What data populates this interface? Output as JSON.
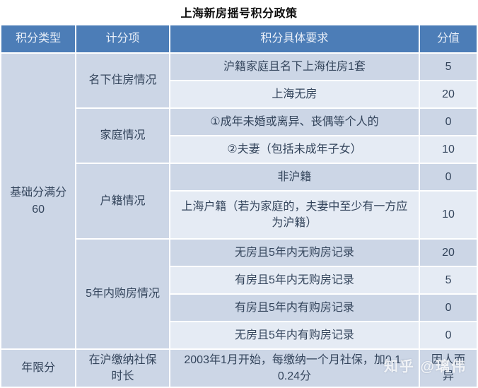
{
  "title": "上海新房摇号积分政策",
  "watermark": "知乎 @璃伟",
  "colors": {
    "header_bg": "#4c7db7",
    "header_text": "#e9eff8",
    "row_mid": "#ccd6e6",
    "row_light": "#e5ebf4",
    "body_text": "#34455c",
    "page_bg": "#ffffff"
  },
  "table": {
    "headers": [
      "积分类型",
      "计分项",
      "积分具体要求",
      "分值"
    ],
    "categories": [
      {
        "label": "基础分满分\n60",
        "span": 10
      },
      {
        "label": "年限分",
        "span": 1
      }
    ],
    "scoring_items": [
      {
        "label": "名下住房情况",
        "span": 2
      },
      {
        "label": "家庭情况",
        "span": 2
      },
      {
        "label": "户籍情况",
        "span": 2
      },
      {
        "label": "5年内购房情况",
        "span": 4
      },
      {
        "label": "在沪缴纳社保\n时长",
        "span": 1
      }
    ],
    "rows": [
      {
        "req": "沪籍家庭且名下上海住房1套",
        "score": "5"
      },
      {
        "req": "上海无房",
        "score": "20"
      },
      {
        "req": "①成年未婚或离异、丧偶等个人的",
        "score": "0"
      },
      {
        "req": "②夫妻（包括未成年子女）",
        "score": "10"
      },
      {
        "req": "非沪籍",
        "score": "0"
      },
      {
        "req": "上海户籍（若为家庭的，夫妻中至少有一方应为沪籍）",
        "score": "10"
      },
      {
        "req": "无房且5年内无购房记录",
        "score": "20"
      },
      {
        "req": "有房且5年内无购房记录",
        "score": "5"
      },
      {
        "req": "有房且5年内有购房记录",
        "score": "0"
      },
      {
        "req": "无房且5年内有购房记录",
        "score": "0"
      },
      {
        "req": "2003年1月开始，每缴纳一个月社保，加0.1-0.24分",
        "score": "因人而异"
      }
    ]
  },
  "chart_data": {
    "type": "table",
    "title": "上海新房摇号积分政策",
    "columns": [
      "积分类型",
      "计分项",
      "积分具体要求",
      "分值"
    ],
    "rows": [
      [
        "基础分满分60",
        "名下住房情况",
        "沪籍家庭且名下上海住房1套",
        "5"
      ],
      [
        "基础分满分60",
        "名下住房情况",
        "上海无房",
        "20"
      ],
      [
        "基础分满分60",
        "家庭情况",
        "①成年未婚或离异、丧偶等个人的",
        "0"
      ],
      [
        "基础分满分60",
        "家庭情况",
        "②夫妻（包括未成年子女）",
        "10"
      ],
      [
        "基础分满分60",
        "户籍情况",
        "非沪籍",
        "0"
      ],
      [
        "基础分满分60",
        "户籍情况",
        "上海户籍（若为家庭的，夫妻中至少有一方应为沪籍）",
        "10"
      ],
      [
        "基础分满分60",
        "5年内购房情况",
        "无房且5年内无购房记录",
        "20"
      ],
      [
        "基础分满分60",
        "5年内购房情况",
        "有房且5年内无购房记录",
        "5"
      ],
      [
        "基础分满分60",
        "5年内购房情况",
        "有房且5年内有购房记录",
        "0"
      ],
      [
        "基础分满分60",
        "5年内购房情况",
        "无房且5年内有购房记录",
        "0"
      ],
      [
        "年限分",
        "在沪缴纳社保时长",
        "2003年1月开始，每缴纳一个月社保，加0.1-0.24分",
        "因人而异"
      ]
    ]
  }
}
